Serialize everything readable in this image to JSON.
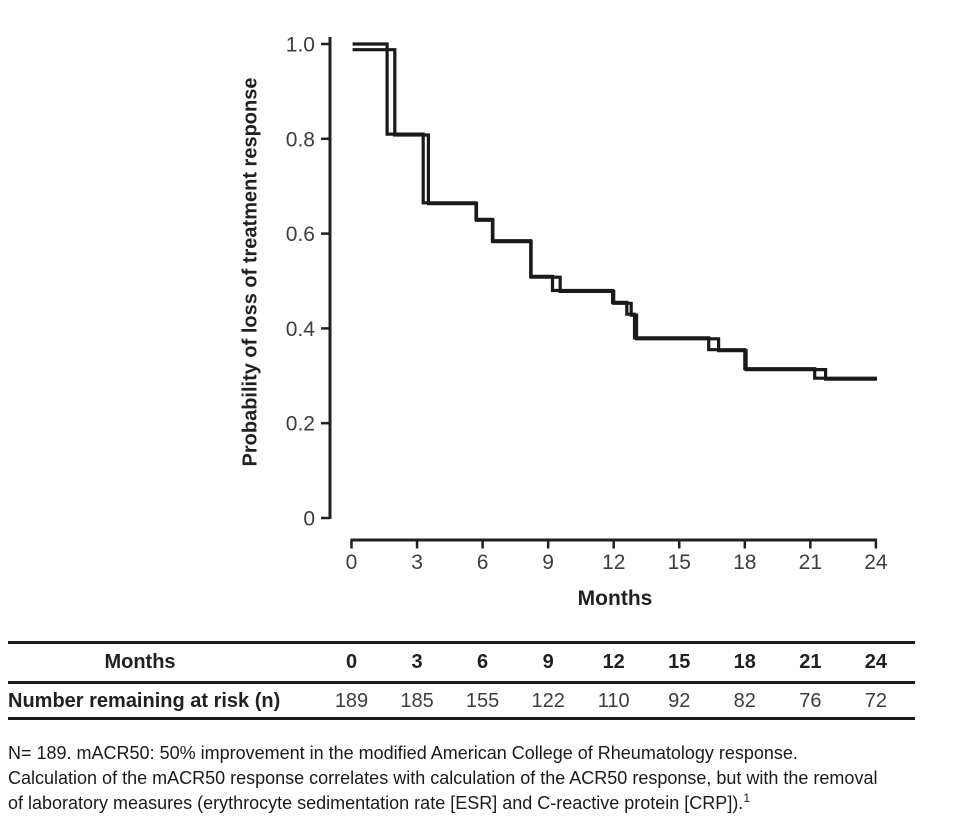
{
  "chart_data": {
    "type": "line",
    "subtype": "kaplan_meier_step",
    "title": "",
    "xlabel": "Months",
    "ylabel": "Probability of loss of treatment response",
    "xlim": [
      0,
      24
    ],
    "ylim": [
      0,
      1.0
    ],
    "grid": false,
    "legend": "none",
    "x_ticks": [
      0,
      3,
      6,
      9,
      12,
      15,
      18,
      21,
      24
    ],
    "y_ticks": [
      {
        "label": "1.0",
        "value": 1.0
      },
      {
        "label": "0.8",
        "value": 0.8
      },
      {
        "label": "0.6",
        "value": 0.6
      },
      {
        "label": "0.4",
        "value": 0.4
      },
      {
        "label": "0.2",
        "value": 0.2
      },
      {
        "label": "0",
        "value": 0.0
      }
    ],
    "line_color": "#1a1a1a",
    "series": [
      {
        "name": "km-curve-a",
        "step_points": [
          [
            0.05,
            1.0
          ],
          [
            1.63,
            1.0
          ],
          [
            1.63,
            0.81
          ],
          [
            3.28,
            0.81
          ],
          [
            3.28,
            0.665
          ],
          [
            5.7,
            0.665
          ],
          [
            5.7,
            0.63
          ],
          [
            6.45,
            0.63
          ],
          [
            6.45,
            0.585
          ],
          [
            8.2,
            0.585
          ],
          [
            8.2,
            0.51
          ],
          [
            9.2,
            0.51
          ],
          [
            9.2,
            0.48
          ],
          [
            11.95,
            0.48
          ],
          [
            11.95,
            0.455
          ],
          [
            12.6,
            0.455
          ],
          [
            12.6,
            0.43
          ],
          [
            12.95,
            0.43
          ],
          [
            12.95,
            0.38
          ],
          [
            16.35,
            0.38
          ],
          [
            16.35,
            0.355
          ],
          [
            18.0,
            0.355
          ],
          [
            18.0,
            0.315
          ],
          [
            21.2,
            0.315
          ],
          [
            21.2,
            0.295
          ],
          [
            24.05,
            0.295
          ]
        ]
      },
      {
        "name": "km-curve-b",
        "step_points": [
          [
            0.05,
            0.988
          ],
          [
            1.98,
            0.988
          ],
          [
            1.98,
            0.808
          ],
          [
            3.52,
            0.808
          ],
          [
            3.52,
            0.663
          ],
          [
            5.72,
            0.663
          ],
          [
            5.72,
            0.628
          ],
          [
            6.47,
            0.628
          ],
          [
            6.47,
            0.583
          ],
          [
            8.22,
            0.583
          ],
          [
            8.22,
            0.508
          ],
          [
            9.55,
            0.508
          ],
          [
            9.55,
            0.478
          ],
          [
            12.0,
            0.478
          ],
          [
            12.0,
            0.453
          ],
          [
            12.8,
            0.453
          ],
          [
            12.8,
            0.428
          ],
          [
            13.05,
            0.428
          ],
          [
            13.05,
            0.378
          ],
          [
            16.8,
            0.378
          ],
          [
            16.8,
            0.353
          ],
          [
            18.06,
            0.353
          ],
          [
            18.06,
            0.313
          ],
          [
            21.7,
            0.313
          ],
          [
            21.7,
            0.293
          ],
          [
            24.05,
            0.293
          ]
        ]
      }
    ]
  },
  "risk_table": {
    "header_label": "Months",
    "row_label": "Number remaining at risk (n)",
    "months": [
      "0",
      "3",
      "6",
      "9",
      "12",
      "15",
      "18",
      "21",
      "24"
    ],
    "values": [
      "189",
      "185",
      "155",
      "122",
      "110",
      "92",
      "82",
      "76",
      "72"
    ]
  },
  "footnote": {
    "line1": "N= 189. mACR50: 50% improvement in the modified American College of Rheumatology response.",
    "line2": "Calculation of the mACR50 response correlates with calculation of the ACR50 response, but with the removal",
    "line3": "of laboratory measures (erythrocyte sedimentation rate [ESR] and C-reactive protein [CRP]).",
    "reference_superscript": "1"
  },
  "colors": {
    "curve": "#1a1a1a",
    "axis": "#231f20",
    "tick_text": "#3d3d3d",
    "bold_text": "#231f20",
    "background": "#ffffff"
  }
}
